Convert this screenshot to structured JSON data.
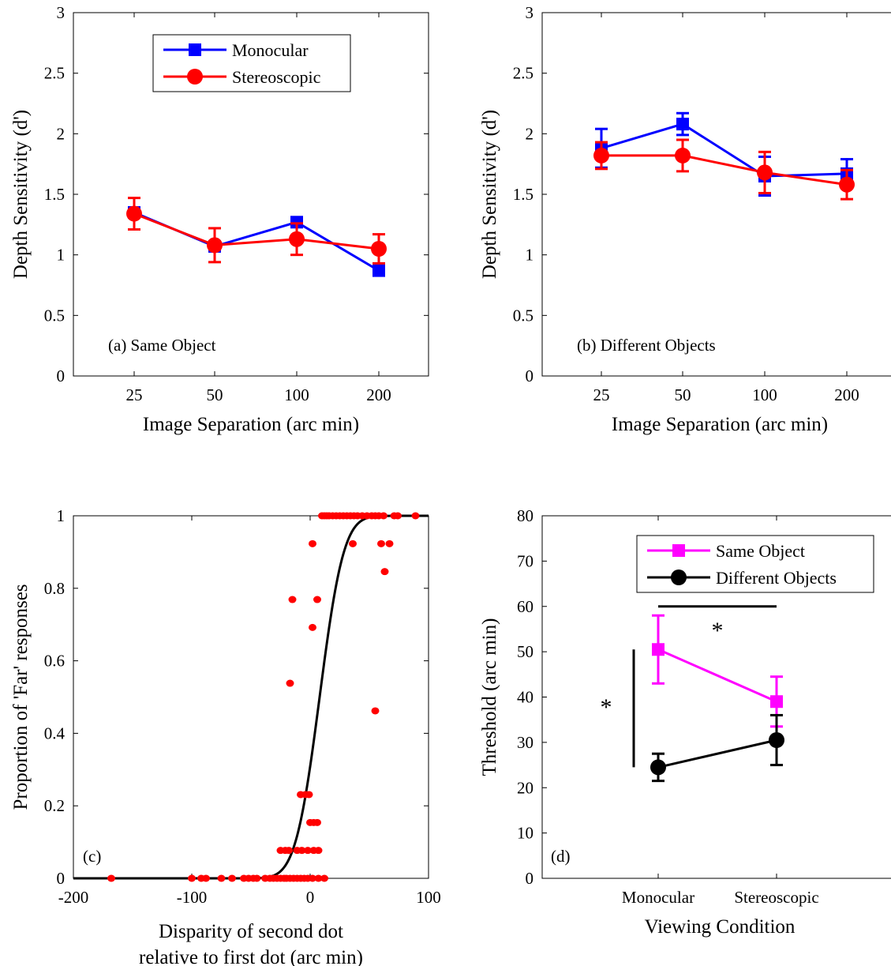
{
  "chart_data": [
    {
      "id": "a",
      "type": "line",
      "panel_label": "(a) Same Object",
      "xlabel": "Image Separation (arc min)",
      "ylabel": "Depth Sensitivity (d')",
      "categories": [
        "25",
        "50",
        "100",
        "200"
      ],
      "ylim": [
        0,
        3
      ],
      "yticks": [
        "0",
        "0.5",
        "1",
        "1.5",
        "2",
        "2.5",
        "3"
      ],
      "legend_position": "top-center",
      "series": [
        {
          "name": "Monocular",
          "color": "#0000ff",
          "marker": "square",
          "values": [
            1.35,
            1.07,
            1.27,
            0.87
          ],
          "err": [
            0,
            0,
            0,
            0
          ]
        },
        {
          "name": "Stereoscopic",
          "color": "#ff0000",
          "marker": "circle",
          "values": [
            1.34,
            1.08,
            1.13,
            1.05
          ],
          "err": [
            0.13,
            0.14,
            0.13,
            0.12
          ]
        }
      ]
    },
    {
      "id": "b",
      "type": "line",
      "panel_label": "(b) Different Objects",
      "xlabel": "Image Separation (arc min)",
      "ylabel": "Depth Sensitivity (d')",
      "categories": [
        "25",
        "50",
        "100",
        "200"
      ],
      "ylim": [
        0,
        3
      ],
      "yticks": [
        "0",
        "0.5",
        "1",
        "1.5",
        "2",
        "2.5",
        "3"
      ],
      "series": [
        {
          "name": "Monocular",
          "color": "#0000ff",
          "marker": "square",
          "values": [
            1.88,
            2.08,
            1.65,
            1.67
          ],
          "err": [
            0.16,
            0.09,
            0.16,
            0.12
          ]
        },
        {
          "name": "Stereoscopic",
          "color": "#ff0000",
          "marker": "circle",
          "values": [
            1.82,
            1.82,
            1.68,
            1.58
          ],
          "err": [
            0.11,
            0.13,
            0.17,
            0.12
          ]
        }
      ]
    },
    {
      "id": "c",
      "type": "scatter",
      "panel_label": "(c)",
      "xlabel": [
        "Disparity of second dot",
        "relative to first dot (arc min)"
      ],
      "ylabel": "Proportion of 'Far' responses",
      "xlim": [
        -200,
        100
      ],
      "xticks": [
        "-200",
        "-100",
        "0",
        "100"
      ],
      "ylim": [
        0,
        1
      ],
      "yticks": [
        "0",
        "0.2",
        "0.4",
        "0.6",
        "0.8",
        "1"
      ],
      "points": [
        [
          -168,
          0
        ],
        [
          -100,
          0
        ],
        [
          -92,
          0
        ],
        [
          -88,
          0
        ],
        [
          -75,
          0
        ],
        [
          -66,
          0
        ],
        [
          -56,
          0
        ],
        [
          -52,
          0
        ],
        [
          -48,
          0
        ],
        [
          -45,
          0
        ],
        [
          -38,
          0
        ],
        [
          -34,
          0
        ],
        [
          -31,
          0
        ],
        [
          -28,
          0
        ],
        [
          -25,
          0
        ],
        [
          -22,
          0
        ],
        [
          -20,
          0
        ],
        [
          -17,
          0
        ],
        [
          -14,
          0
        ],
        [
          -11,
          0
        ],
        [
          -8,
          0
        ],
        [
          -5,
          0
        ],
        [
          -2,
          0
        ],
        [
          2,
          0
        ],
        [
          7,
          0
        ],
        [
          12,
          0
        ],
        [
          -25,
          0.077
        ],
        [
          -21,
          0.077
        ],
        [
          -18,
          0.077
        ],
        [
          -11,
          0.077
        ],
        [
          -7,
          0.077
        ],
        [
          -2,
          0.077
        ],
        [
          3,
          0.077
        ],
        [
          7,
          0.077
        ],
        [
          0,
          0.154
        ],
        [
          3,
          0.154
        ],
        [
          6,
          0.154
        ],
        [
          -8,
          0.231
        ],
        [
          -4,
          0.231
        ],
        [
          -1,
          0.231
        ],
        [
          -17,
          0.538
        ],
        [
          55,
          0.462
        ],
        [
          2,
          0.692
        ],
        [
          -15,
          0.769
        ],
        [
          6,
          0.769
        ],
        [
          63,
          0.846
        ],
        [
          2,
          0.923
        ],
        [
          36,
          0.923
        ],
        [
          60,
          0.923
        ],
        [
          67,
          0.923
        ],
        [
          10,
          1
        ],
        [
          12,
          1
        ],
        [
          14,
          1
        ],
        [
          16,
          1
        ],
        [
          19,
          1
        ],
        [
          22,
          1
        ],
        [
          25,
          1
        ],
        [
          28,
          1
        ],
        [
          31,
          1
        ],
        [
          34,
          1
        ],
        [
          37,
          1
        ],
        [
          40,
          1
        ],
        [
          44,
          1
        ],
        [
          48,
          1
        ],
        [
          52,
          1
        ],
        [
          55,
          1
        ],
        [
          58,
          1
        ],
        [
          62,
          1
        ],
        [
          71,
          1
        ],
        [
          74,
          1
        ],
        [
          89,
          1
        ]
      ],
      "fit": {
        "type": "cumulative-gaussian",
        "mu": 8,
        "sigma": 16
      }
    },
    {
      "id": "d",
      "type": "line",
      "panel_label": "(d)",
      "xlabel": "Viewing Condition",
      "ylabel": "Threshold (arc min)",
      "categories": [
        "Monocular",
        "Stereoscopic"
      ],
      "ylim": [
        0,
        80
      ],
      "yticks": [
        "0",
        "10",
        "20",
        "30",
        "40",
        "50",
        "60",
        "70",
        "80"
      ],
      "legend_position": "top-right",
      "series": [
        {
          "name": "Same Object",
          "color": "#ff00ff",
          "marker": "square",
          "values": [
            50.5,
            39
          ],
          "err": [
            7.5,
            5.5
          ]
        },
        {
          "name": "Different Objects",
          "color": "#000000",
          "marker": "circle",
          "values": [
            24.5,
            30.5
          ],
          "err": [
            3,
            5.5
          ]
        }
      ],
      "significance": [
        {
          "label": "*",
          "between": "conditions"
        },
        {
          "label": "*",
          "between": "objects"
        }
      ]
    }
  ]
}
